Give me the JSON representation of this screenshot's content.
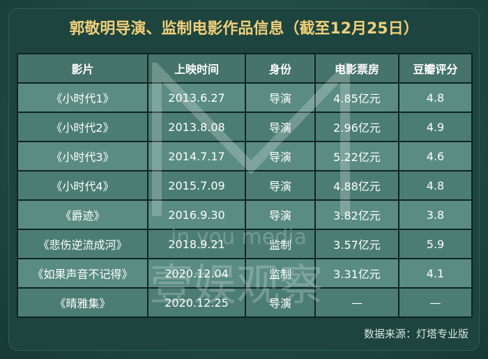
{
  "title": "郭敬明导演、监制电影作品信息（截至12月25日）",
  "table": {
    "headers": [
      "影片",
      "上映时间",
      "身份",
      "电影票房",
      "豆瓣评分"
    ],
    "rows": [
      [
        "《小时代1》",
        "2013.6.27",
        "导演",
        "4.85亿元",
        "4.8"
      ],
      [
        "《小时代2》",
        "2013.8.08",
        "导演",
        "2.96亿元",
        "4.9"
      ],
      [
        "《小时代3》",
        "2014.7.17",
        "导演",
        "5.22亿元",
        "4.6"
      ],
      [
        "《小时代4》",
        "2015.7.09",
        "导演",
        "4.88亿元",
        "4.8"
      ],
      [
        "《爵迹》",
        "2016.9.30",
        "导演",
        "3.82亿元",
        "3.8"
      ],
      [
        "《悲伤逆流成河》",
        "2018.9.21",
        "监制",
        "3.57亿元",
        "5.9"
      ],
      [
        "《如果声音不记得》",
        "2020.12.04",
        "监制",
        "3.31亿元",
        "4.1"
      ],
      [
        "《晴雅集》",
        "2020.12.25",
        "导演",
        "—",
        "—"
      ]
    ]
  },
  "source": "数据来源：灯塔专业版",
  "watermark": {
    "line1": "in you media",
    "line2": "壹娱观察"
  }
}
